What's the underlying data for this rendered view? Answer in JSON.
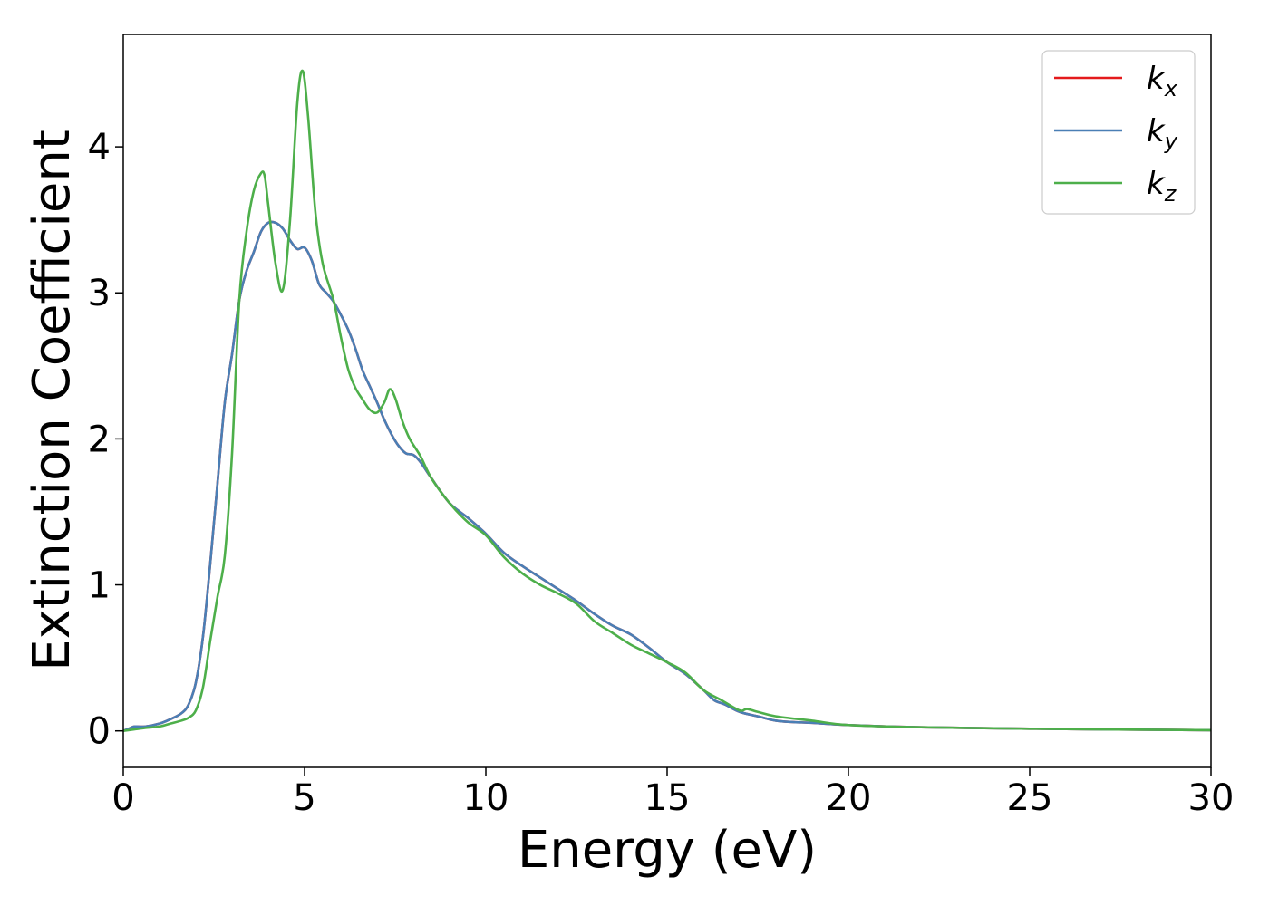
{
  "chart_data": {
    "type": "line",
    "title": "",
    "xlabel": "Energy (eV)",
    "ylabel": "Extinction Coefficient",
    "xlim": [
      0,
      30
    ],
    "ylim": [
      -0.25,
      4.77
    ],
    "xticks": [
      "0",
      "5",
      "10",
      "15",
      "20",
      "25",
      "30"
    ],
    "yticks": [
      "0",
      "1",
      "2",
      "3",
      "4"
    ],
    "grid": false,
    "legend_position": "top-right",
    "series": [
      {
        "name": "k_x",
        "legend_main": "k",
        "legend_sub": "x",
        "color": "#e41a1c",
        "x": [
          0,
          0.2,
          0.3,
          0.6,
          1.0,
          1.3,
          1.6,
          1.8,
          2.0,
          2.2,
          2.4,
          2.6,
          2.8,
          3.0,
          3.2,
          3.4,
          3.6,
          3.8,
          4.0,
          4.2,
          4.4,
          4.6,
          4.8,
          5.0,
          5.2,
          5.4,
          5.6,
          5.8,
          6.0,
          6.2,
          6.4,
          6.6,
          6.8,
          7.0,
          7.2,
          7.4,
          7.6,
          7.8,
          8.0,
          8.2,
          8.5,
          9.0,
          9.5,
          10.0,
          10.5,
          11.0,
          11.5,
          12.0,
          12.5,
          13.0,
          13.5,
          14.0,
          14.5,
          15.0,
          15.5,
          16.0,
          16.3,
          16.6,
          17.0,
          17.5,
          18.0,
          18.5,
          19.0,
          20.0,
          22.0,
          25.0,
          27.0,
          30.0
        ],
        "values": [
          0.0,
          0.02,
          0.03,
          0.03,
          0.05,
          0.08,
          0.12,
          0.18,
          0.33,
          0.65,
          1.15,
          1.7,
          2.25,
          2.58,
          2.95,
          3.15,
          3.28,
          3.42,
          3.48,
          3.48,
          3.44,
          3.36,
          3.3,
          3.31,
          3.22,
          3.06,
          3.0,
          2.94,
          2.85,
          2.75,
          2.62,
          2.47,
          2.36,
          2.25,
          2.13,
          2.03,
          1.95,
          1.9,
          1.89,
          1.84,
          1.73,
          1.56,
          1.46,
          1.35,
          1.22,
          1.13,
          1.05,
          0.97,
          0.89,
          0.8,
          0.72,
          0.66,
          0.57,
          0.47,
          0.39,
          0.28,
          0.21,
          0.18,
          0.13,
          0.1,
          0.07,
          0.06,
          0.055,
          0.04,
          0.025,
          0.015,
          0.01,
          0.005
        ]
      },
      {
        "name": "k_y",
        "legend_main": "k",
        "legend_sub": "y",
        "color": "#4a7fb5",
        "x": [
          0,
          0.2,
          0.3,
          0.6,
          1.0,
          1.3,
          1.6,
          1.8,
          2.0,
          2.2,
          2.4,
          2.6,
          2.8,
          3.0,
          3.2,
          3.4,
          3.6,
          3.8,
          4.0,
          4.2,
          4.4,
          4.6,
          4.8,
          5.0,
          5.2,
          5.4,
          5.6,
          5.8,
          6.0,
          6.2,
          6.4,
          6.6,
          6.8,
          7.0,
          7.2,
          7.4,
          7.6,
          7.8,
          8.0,
          8.2,
          8.5,
          9.0,
          9.5,
          10.0,
          10.5,
          11.0,
          11.5,
          12.0,
          12.5,
          13.0,
          13.5,
          14.0,
          14.5,
          15.0,
          15.5,
          16.0,
          16.3,
          16.6,
          17.0,
          17.5,
          18.0,
          18.5,
          19.0,
          20.0,
          22.0,
          25.0,
          27.0,
          30.0
        ],
        "values": [
          0.0,
          0.02,
          0.03,
          0.03,
          0.05,
          0.08,
          0.12,
          0.18,
          0.33,
          0.65,
          1.15,
          1.7,
          2.25,
          2.58,
          2.95,
          3.15,
          3.28,
          3.42,
          3.48,
          3.48,
          3.44,
          3.36,
          3.3,
          3.31,
          3.22,
          3.06,
          3.0,
          2.94,
          2.85,
          2.75,
          2.62,
          2.47,
          2.36,
          2.25,
          2.13,
          2.03,
          1.95,
          1.9,
          1.89,
          1.84,
          1.73,
          1.56,
          1.46,
          1.35,
          1.22,
          1.13,
          1.05,
          0.97,
          0.89,
          0.8,
          0.72,
          0.66,
          0.57,
          0.47,
          0.39,
          0.28,
          0.21,
          0.18,
          0.13,
          0.1,
          0.07,
          0.06,
          0.055,
          0.04,
          0.025,
          0.015,
          0.01,
          0.005
        ]
      },
      {
        "name": "k_z",
        "legend_main": "k",
        "legend_sub": "z",
        "color": "#4daf4a",
        "x": [
          0,
          0.3,
          0.6,
          1.0,
          1.3,
          1.6,
          1.8,
          2.0,
          2.2,
          2.4,
          2.6,
          2.8,
          3.0,
          3.2,
          3.4,
          3.6,
          3.8,
          3.9,
          4.0,
          4.2,
          4.4,
          4.6,
          4.8,
          4.95,
          5.1,
          5.3,
          5.5,
          5.8,
          6.0,
          6.2,
          6.4,
          6.6,
          6.8,
          7.0,
          7.2,
          7.35,
          7.5,
          7.7,
          7.9,
          8.2,
          8.5,
          9.0,
          9.5,
          10.0,
          10.5,
          11.0,
          11.5,
          12.0,
          12.5,
          13.0,
          13.5,
          14.0,
          14.5,
          15.0,
          15.5,
          16.0,
          16.5,
          17.0,
          17.2,
          17.5,
          18.0,
          19.0,
          20.0,
          22.0,
          25.0,
          27.0,
          30.0
        ],
        "values": [
          0.0,
          0.01,
          0.02,
          0.03,
          0.05,
          0.07,
          0.09,
          0.14,
          0.3,
          0.62,
          0.92,
          1.2,
          1.9,
          2.95,
          3.42,
          3.7,
          3.82,
          3.8,
          3.6,
          3.2,
          3.02,
          3.5,
          4.3,
          4.52,
          4.2,
          3.55,
          3.2,
          2.95,
          2.7,
          2.48,
          2.35,
          2.27,
          2.2,
          2.18,
          2.25,
          2.34,
          2.28,
          2.12,
          2.0,
          1.88,
          1.73,
          1.56,
          1.43,
          1.34,
          1.19,
          1.08,
          1.0,
          0.94,
          0.87,
          0.75,
          0.67,
          0.59,
          0.53,
          0.47,
          0.4,
          0.28,
          0.21,
          0.14,
          0.15,
          0.13,
          0.1,
          0.07,
          0.04,
          0.025,
          0.015,
          0.01,
          0.005
        ]
      }
    ]
  }
}
